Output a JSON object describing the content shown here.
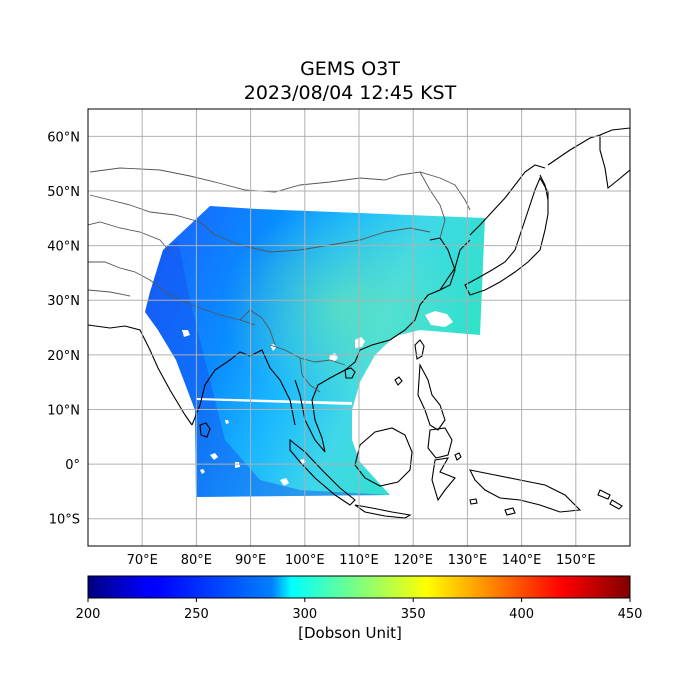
{
  "title": {
    "line1": "GEMS O3T",
    "line2": "2023/08/04 12:45 KST"
  },
  "map": {
    "projection": "PlateCarree",
    "lon_range": [
      60,
      160
    ],
    "lat_range": [
      -15,
      65
    ],
    "lat_ticks": [
      {
        "value": 60,
        "label": "60°N"
      },
      {
        "value": 50,
        "label": "50°N"
      },
      {
        "value": 40,
        "label": "40°N"
      },
      {
        "value": 30,
        "label": "30°N"
      },
      {
        "value": 20,
        "label": "20°N"
      },
      {
        "value": 10,
        "label": "10°N"
      },
      {
        "value": 0,
        "label": "0°"
      },
      {
        "value": -10,
        "label": "10°S"
      }
    ],
    "lon_ticks": [
      {
        "value": 70,
        "label": "70°E"
      },
      {
        "value": 80,
        "label": "80°E"
      },
      {
        "value": 90,
        "label": "90°E"
      },
      {
        "value": 100,
        "label": "100°E"
      },
      {
        "value": 110,
        "label": "110°E"
      },
      {
        "value": 120,
        "label": "120°E"
      },
      {
        "value": 130,
        "label": "130°E"
      },
      {
        "value": 140,
        "label": "140°E"
      },
      {
        "value": 150,
        "label": "150°E"
      }
    ],
    "grid": true,
    "ozone_typical_range_du": [
      255,
      320
    ]
  },
  "colorbar": {
    "label": "[Dobson Unit]",
    "colormap": "jet",
    "min": 200,
    "max": 450,
    "ticks": [
      {
        "value": 200,
        "label": "200"
      },
      {
        "value": 250,
        "label": "250"
      },
      {
        "value": 300,
        "label": "300"
      },
      {
        "value": 350,
        "label": "350"
      },
      {
        "value": 400,
        "label": "400"
      },
      {
        "value": 450,
        "label": "450"
      }
    ]
  },
  "colors": {
    "coastline": "#000000",
    "borders": "#555555",
    "gridlines": "#b0b0b0"
  }
}
